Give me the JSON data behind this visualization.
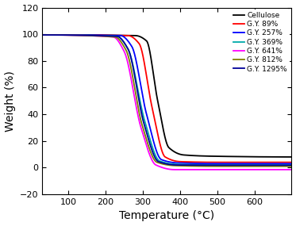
{
  "xlabel": "Temperature (°C)",
  "ylabel": "Weight (%)",
  "xlim": [
    30,
    700
  ],
  "ylim": [
    -20,
    120
  ],
  "yticks": [
    -20,
    0,
    20,
    40,
    60,
    80,
    100,
    120
  ],
  "xticks": [
    100,
    200,
    300,
    400,
    500,
    600
  ],
  "series": [
    {
      "label": "Cellulose",
      "color": "#000000",
      "ctrl_T": [
        30,
        280,
        310,
        340,
        370,
        410,
        500,
        700
      ],
      "ctrl_W": [
        99.5,
        99.0,
        95.0,
        50.0,
        15.0,
        9.5,
        8.5,
        8.0
      ]
    },
    {
      "label": "G.Y. 89%",
      "color": "#ff0000",
      "ctrl_T": [
        30,
        260,
        290,
        325,
        360,
        400,
        500,
        700
      ],
      "ctrl_W": [
        99.5,
        99.0,
        93.0,
        45.0,
        8.0,
        4.5,
        4.0,
        4.0
      ]
    },
    {
      "label": "G.Y. 257%",
      "color": "#0000ff",
      "ctrl_T": [
        30,
        240,
        270,
        310,
        350,
        395,
        500,
        700
      ],
      "ctrl_W": [
        99.5,
        99.0,
        91.0,
        40.0,
        6.0,
        3.5,
        3.0,
        3.0
      ]
    },
    {
      "label": "G.Y. 369%",
      "color": "#00aaaa",
      "ctrl_T": [
        30,
        230,
        260,
        305,
        345,
        390,
        500,
        700
      ],
      "ctrl_W": [
        99.5,
        98.5,
        89.0,
        35.0,
        5.0,
        2.5,
        2.0,
        2.0
      ]
    },
    {
      "label": "G.Y. 641%",
      "color": "#ff00ff",
      "ctrl_T": [
        30,
        220,
        250,
        295,
        335,
        385,
        500,
        700
      ],
      "ctrl_W": [
        99.5,
        98.0,
        87.0,
        30.0,
        2.0,
        -1.5,
        -1.5,
        -1.5
      ]
    },
    {
      "label": "G.Y. 812%",
      "color": "#808000",
      "ctrl_T": [
        30,
        225,
        255,
        298,
        338,
        387,
        500,
        700
      ],
      "ctrl_W": [
        99.5,
        98.0,
        88.0,
        32.0,
        4.0,
        1.5,
        1.0,
        1.0
      ]
    },
    {
      "label": "G.Y. 1295%",
      "color": "#000099",
      "ctrl_T": [
        30,
        230,
        260,
        303,
        342,
        390,
        500,
        700
      ],
      "ctrl_W": [
        99.5,
        98.5,
        89.0,
        33.0,
        4.5,
        2.0,
        1.8,
        1.8
      ]
    }
  ],
  "background_color": "#ffffff",
  "legend_fontsize": 6.5,
  "axis_fontsize": 10,
  "tick_fontsize": 8,
  "linewidth": 1.3
}
